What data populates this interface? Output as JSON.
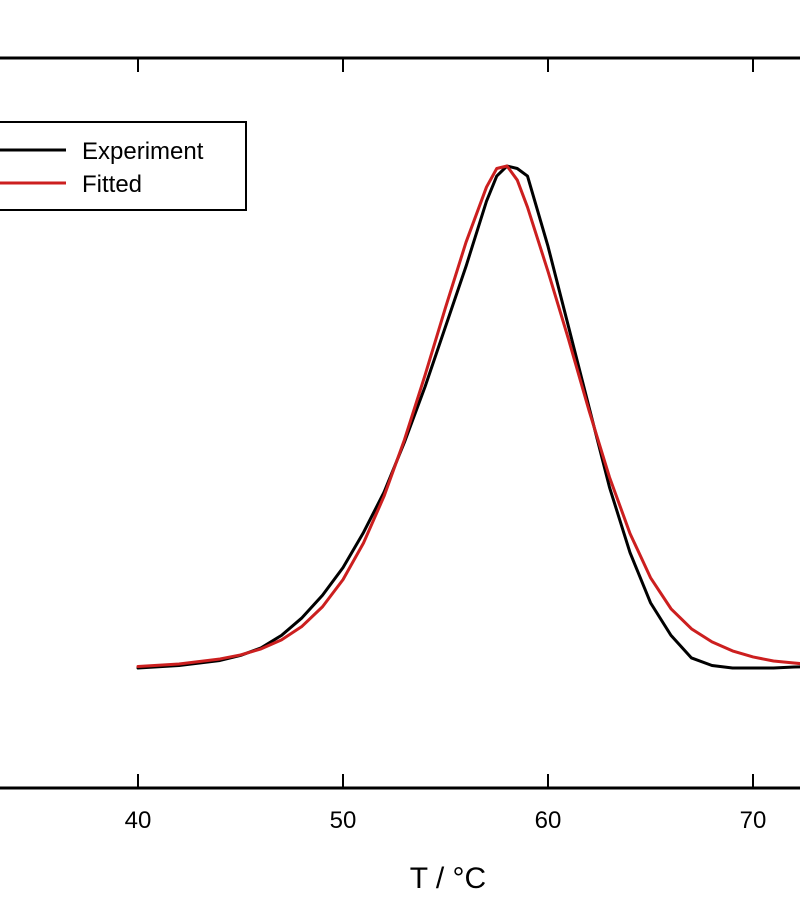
{
  "chart_data": {
    "type": "line",
    "title": "",
    "xlabel": "T / °C",
    "ylabel": "",
    "xlim": [
      34,
      73
    ],
    "ylim": [
      -0.2,
      1.2
    ],
    "x_ticks": [
      40,
      50,
      60,
      70
    ],
    "grid": false,
    "legend_position": "top-left",
    "series": [
      {
        "name": "Experiment",
        "color": "#000000",
        "x": [
          40,
          42,
          44,
          45,
          46,
          47,
          48,
          49,
          50,
          51,
          52,
          53,
          54,
          55,
          56,
          57,
          57.5,
          58,
          58.5,
          59,
          60,
          61,
          62,
          63,
          64,
          65,
          66,
          67,
          68,
          69,
          70,
          71,
          72,
          73
        ],
        "y": [
          0.0,
          0.005,
          0.015,
          0.025,
          0.04,
          0.065,
          0.1,
          0.145,
          0.2,
          0.27,
          0.35,
          0.45,
          0.56,
          0.68,
          0.8,
          0.93,
          0.98,
          1.0,
          0.995,
          0.98,
          0.84,
          0.68,
          0.52,
          0.36,
          0.23,
          0.13,
          0.065,
          0.02,
          0.005,
          0.0,
          0.0,
          0.0,
          0.002,
          0.003
        ]
      },
      {
        "name": "Fitted",
        "color": "#cc1f1f",
        "x": [
          40,
          42,
          44,
          45,
          46,
          47,
          48,
          49,
          50,
          51,
          52,
          53,
          54,
          55,
          56,
          57,
          57.5,
          58,
          58.5,
          59,
          60,
          61,
          62,
          63,
          64,
          65,
          66,
          67,
          68,
          69,
          70,
          71,
          72,
          73
        ],
        "y": [
          0.003,
          0.008,
          0.018,
          0.026,
          0.038,
          0.056,
          0.083,
          0.122,
          0.176,
          0.249,
          0.342,
          0.455,
          0.583,
          0.718,
          0.848,
          0.958,
          0.995,
          1.0,
          0.972,
          0.918,
          0.79,
          0.655,
          0.513,
          0.38,
          0.268,
          0.18,
          0.118,
          0.078,
          0.052,
          0.034,
          0.022,
          0.014,
          0.01,
          0.006
        ]
      }
    ]
  }
}
